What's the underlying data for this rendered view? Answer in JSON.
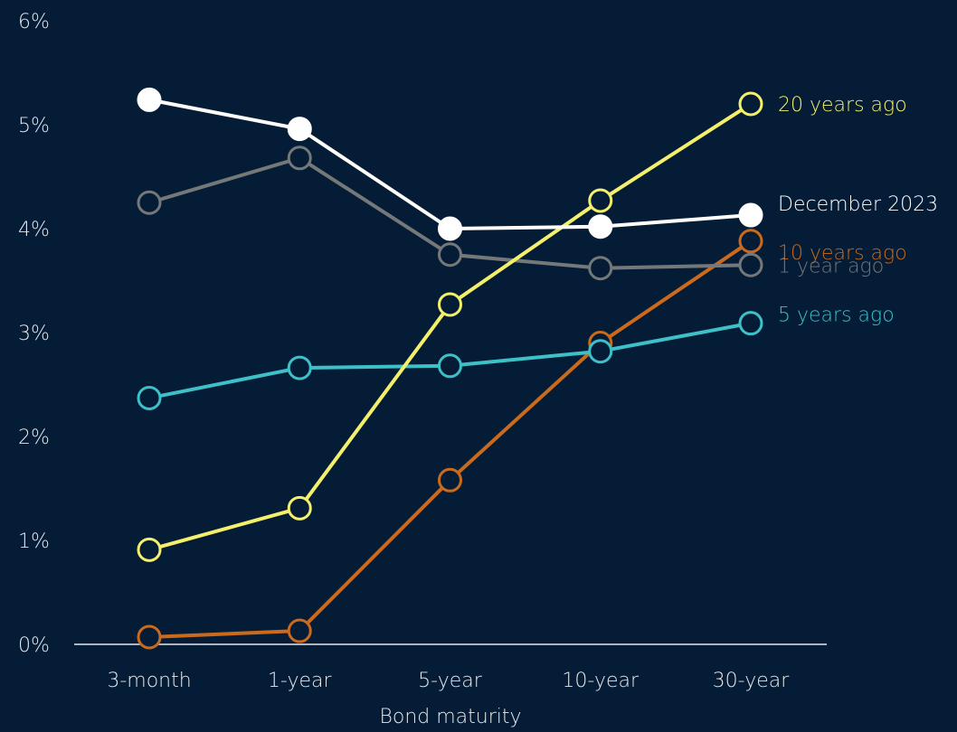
{
  "chart_data": {
    "type": "line",
    "title": "",
    "xlabel": "Bond maturity",
    "ylabel": "",
    "categories": [
      "3-month",
      "1-year",
      "5-year",
      "10-year",
      "30-year"
    ],
    "ylim": [
      0,
      6
    ],
    "y_ticks": [
      0,
      1,
      2,
      3,
      4,
      5,
      6
    ],
    "y_tick_labels": [
      "0%",
      "1%",
      "2%",
      "3%",
      "4%",
      "5%",
      "6%"
    ],
    "grid": false,
    "legend": "direct labels at right end of lines",
    "series": [
      {
        "name": "10 years ago",
        "color": "#c96a1c",
        "filled": false,
        "values": [
          0.07,
          0.13,
          1.58,
          2.9,
          3.88
        ]
      },
      {
        "name": "5 years ago",
        "color": "#3ec0c8",
        "filled": false,
        "values": [
          2.37,
          2.66,
          2.68,
          2.82,
          3.09
        ]
      },
      {
        "name": "1 year ago",
        "color": "#757879",
        "filled": false,
        "values": [
          4.25,
          4.68,
          3.75,
          3.62,
          3.65
        ]
      },
      {
        "name": "20 years ago",
        "color": "#f4f06a",
        "filled": false,
        "values": [
          0.91,
          1.31,
          3.27,
          4.27,
          5.2
        ]
      },
      {
        "name": "December 2023",
        "color": "#ffffff",
        "filled": true,
        "values": [
          5.24,
          4.96,
          4.0,
          4.02,
          4.13
        ]
      }
    ]
  }
}
